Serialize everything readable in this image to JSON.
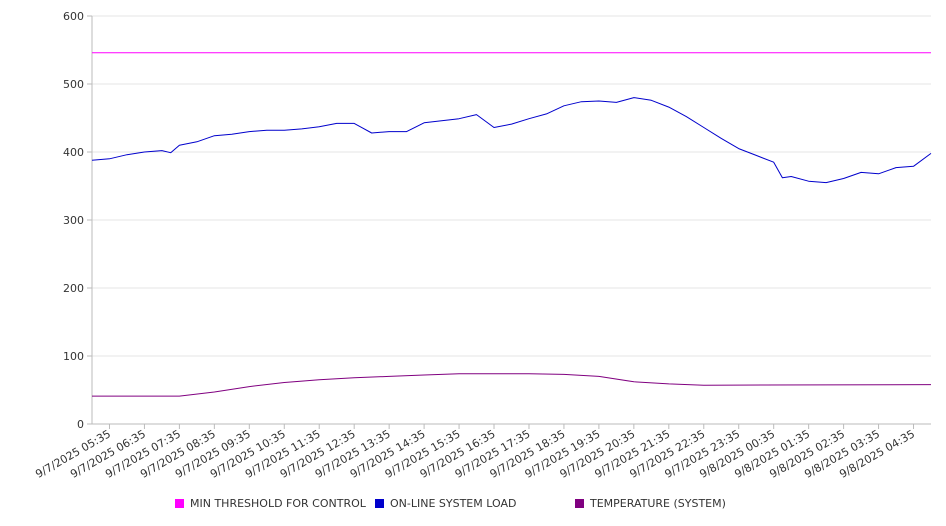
{
  "chart_data": {
    "type": "line",
    "title": "",
    "xlabel": "",
    "ylabel": "",
    "ylim": [
      0,
      600
    ],
    "yticks": [
      "0",
      "100",
      "200",
      "300",
      "400",
      "500",
      "600"
    ],
    "grid": true,
    "legend_position": "bottom",
    "x_tick_labels": [
      "9/7/2025 05:35",
      "9/7/2025 06:35",
      "9/7/2025 07:35",
      "9/7/2025 08:35",
      "9/7/2025 09:35",
      "9/7/2025 10:35",
      "9/7/2025 11:35",
      "9/7/2025 12:35",
      "9/7/2025 13:35",
      "9/7/2025 14:35",
      "9/7/2025 15:35",
      "9/7/2025 16:35",
      "9/7/2025 17:35",
      "9/7/2025 18:35",
      "9/7/2025 19:35",
      "9/7/2025 20:35",
      "9/7/2025 21:35",
      "9/7/2025 22:35",
      "9/7/2025 23:35",
      "9/8/2025 00:35",
      "9/8/2025 01:35",
      "9/8/2025 02:35",
      "9/8/2025 03:35",
      "9/8/2025 04:35"
    ],
    "x_range": [
      "9/7/2025 05:05",
      "9/8/2025 05:05"
    ],
    "series": [
      {
        "name": "MIN THRESHOLD FOR CONTROL",
        "color": "#ff00ff",
        "points": [
          [
            "9/7/2025 05:05",
            546
          ],
          [
            "9/8/2025 05:05",
            546
          ]
        ]
      },
      {
        "name": "ON-LINE SYSTEM LOAD",
        "color": "#0000cc",
        "points": [
          [
            "9/7/2025 05:05",
            388
          ],
          [
            "9/7/2025 05:35",
            390
          ],
          [
            "9/7/2025 06:05",
            396
          ],
          [
            "9/7/2025 06:35",
            400
          ],
          [
            "9/7/2025 07:05",
            402
          ],
          [
            "9/7/2025 07:20",
            399
          ],
          [
            "9/7/2025 07:35",
            410
          ],
          [
            "9/7/2025 08:05",
            415
          ],
          [
            "9/7/2025 08:35",
            424
          ],
          [
            "9/7/2025 09:05",
            426
          ],
          [
            "9/7/2025 09:35",
            430
          ],
          [
            "9/7/2025 10:05",
            432
          ],
          [
            "9/7/2025 10:35",
            432
          ],
          [
            "9/7/2025 11:05",
            434
          ],
          [
            "9/7/2025 11:35",
            437
          ],
          [
            "9/7/2025 12:05",
            442
          ],
          [
            "9/7/2025 12:35",
            442
          ],
          [
            "9/7/2025 13:05",
            428
          ],
          [
            "9/7/2025 13:35",
            430
          ],
          [
            "9/7/2025 14:05",
            430
          ],
          [
            "9/7/2025 14:35",
            443
          ],
          [
            "9/7/2025 15:05",
            446
          ],
          [
            "9/7/2025 15:35",
            449
          ],
          [
            "9/7/2025 16:05",
            455
          ],
          [
            "9/7/2025 16:35",
            436
          ],
          [
            "9/7/2025 17:05",
            441
          ],
          [
            "9/7/2025 17:35",
            449
          ],
          [
            "9/7/2025 18:05",
            456
          ],
          [
            "9/7/2025 18:35",
            468
          ],
          [
            "9/7/2025 19:05",
            474
          ],
          [
            "9/7/2025 19:35",
            475
          ],
          [
            "9/7/2025 20:05",
            473
          ],
          [
            "9/7/2025 20:35",
            480
          ],
          [
            "9/7/2025 21:05",
            476
          ],
          [
            "9/7/2025 21:35",
            466
          ],
          [
            "9/7/2025 22:05",
            452
          ],
          [
            "9/7/2025 22:35",
            436
          ],
          [
            "9/7/2025 23:05",
            420
          ],
          [
            "9/7/2025 23:35",
            405
          ],
          [
            "9/8/2025 00:05",
            395
          ],
          [
            "9/8/2025 00:35",
            385
          ],
          [
            "9/8/2025 00:50",
            362
          ],
          [
            "9/8/2025 01:05",
            364
          ],
          [
            "9/8/2025 01:35",
            357
          ],
          [
            "9/8/2025 02:05",
            355
          ],
          [
            "9/8/2025 02:35",
            361
          ],
          [
            "9/8/2025 03:05",
            370
          ],
          [
            "9/8/2025 03:35",
            368
          ],
          [
            "9/8/2025 04:05",
            377
          ],
          [
            "9/8/2025 04:35",
            379
          ],
          [
            "9/8/2025 05:05",
            398
          ]
        ]
      },
      {
        "name": "TEMPERATURE (SYSTEM)",
        "color": "#800080",
        "points": [
          [
            "9/7/2025 05:05",
            41
          ],
          [
            "9/7/2025 07:35",
            41
          ],
          [
            "9/7/2025 08:35",
            47
          ],
          [
            "9/7/2025 09:35",
            55
          ],
          [
            "9/7/2025 10:35",
            61
          ],
          [
            "9/7/2025 11:35",
            65
          ],
          [
            "9/7/2025 12:35",
            68
          ],
          [
            "9/7/2025 13:35",
            70
          ],
          [
            "9/7/2025 14:35",
            72
          ],
          [
            "9/7/2025 15:35",
            74
          ],
          [
            "9/7/2025 16:35",
            74
          ],
          [
            "9/7/2025 17:35",
            74
          ],
          [
            "9/7/2025 18:35",
            73
          ],
          [
            "9/7/2025 19:35",
            70
          ],
          [
            "9/7/2025 20:35",
            62
          ],
          [
            "9/7/2025 21:35",
            59
          ],
          [
            "9/7/2025 22:35",
            57
          ],
          [
            "9/8/2025 05:05",
            58
          ]
        ]
      }
    ]
  }
}
